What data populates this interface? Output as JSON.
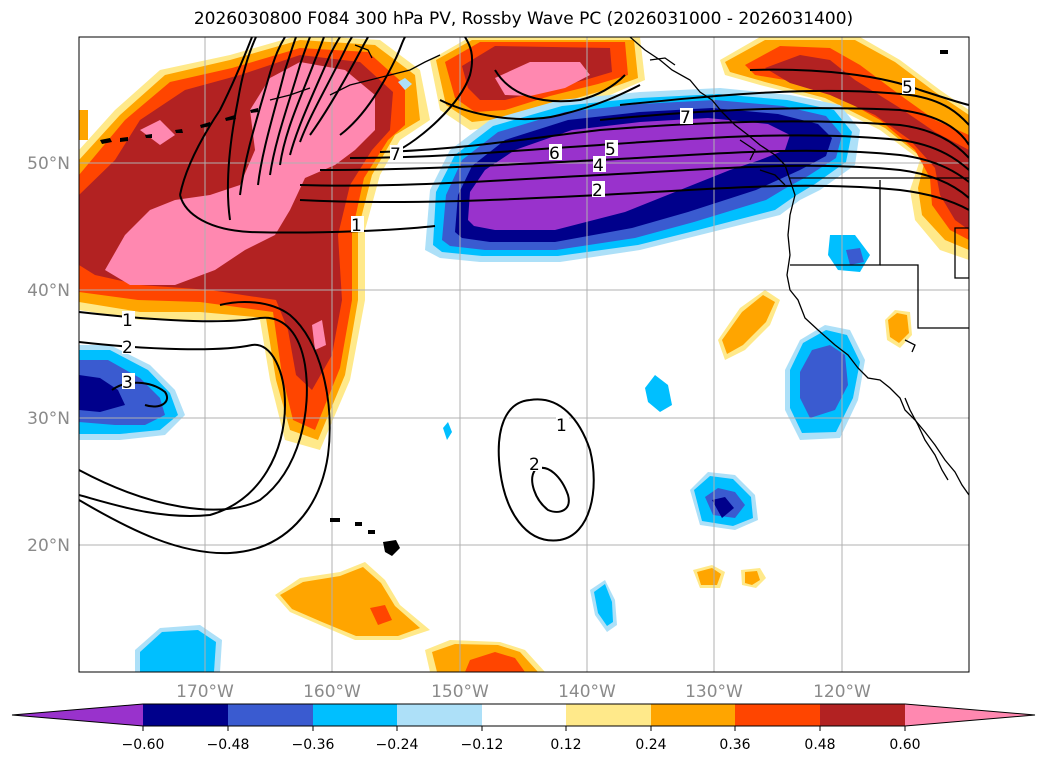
{
  "title": "2026030800 F084 300 hPa PV, Rossby Wave PC (2026031000 - 2026031400)",
  "lat_labels": [
    "50°N",
    "40°N",
    "30°N",
    "20°N"
  ],
  "lon_labels": [
    "170°W",
    "160°W",
    "150°W",
    "140°W",
    "130°W",
    "120°W"
  ],
  "contour_labels": {
    "c1a": "1",
    "c1b": "1",
    "c1c": "1",
    "c2a": "2",
    "c2b": "2",
    "c2c": "2",
    "c3": "3",
    "c4": "4",
    "c5a": "5",
    "c5b": "5",
    "c6": "6",
    "c7a": "7",
    "c7b": "7"
  },
  "colorbar": {
    "ticks": [
      "−0.60",
      "−0.48",
      "−0.36",
      "−0.24",
      "−0.12",
      "0.12",
      "0.24",
      "0.36",
      "0.48",
      "0.60"
    ],
    "colors": {
      "lt_neg060": "#9932CC",
      "neg060_048": "#00008B",
      "neg048_036": "#3A5BD0",
      "neg036_024": "#00BFFF",
      "neg024_012": "#ADE0F8",
      "neutral": "#FFFFFF",
      "pos012_024": "#FFE98A",
      "pos024_036": "#FFA500",
      "pos036_048": "#FF4500",
      "pos048_060": "#B22222",
      "gt_060": "#FF88B0"
    }
  }
}
